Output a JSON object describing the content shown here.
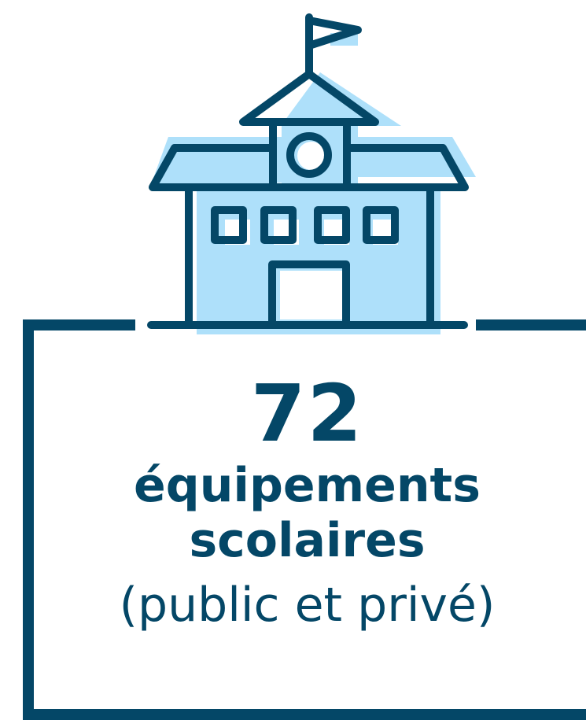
{
  "colors": {
    "outline": "#044767",
    "fill": "#aee0fa",
    "background": "#ffffff"
  },
  "icon": "school-building-icon",
  "stat": {
    "number": "72",
    "label_line1": "équipements",
    "label_line2": "scolaires",
    "note": "(public et privé)"
  }
}
